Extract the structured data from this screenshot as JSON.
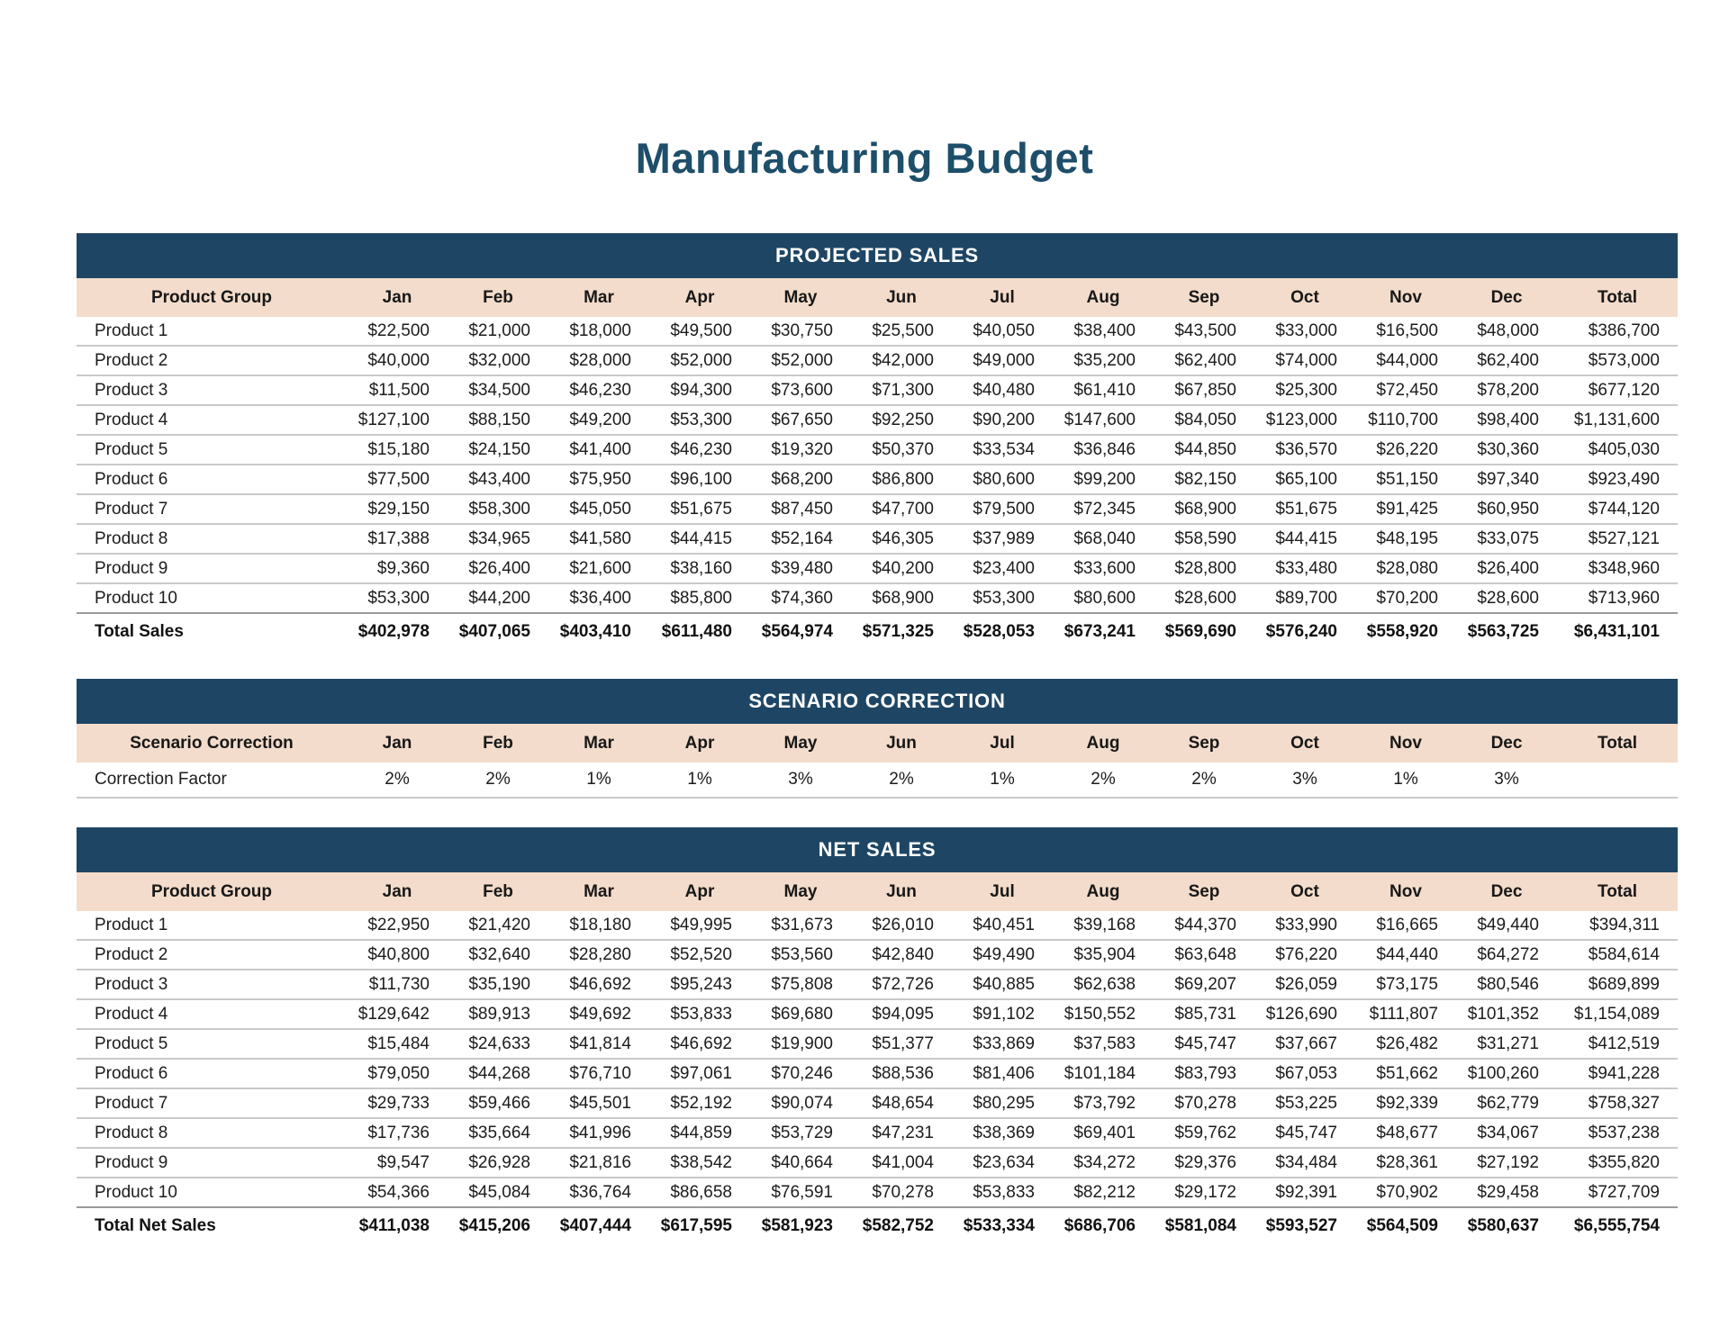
{
  "title": "Manufacturing Budget",
  "total_label": "Total",
  "months": [
    "Jan",
    "Feb",
    "Mar",
    "Apr",
    "May",
    "Jun",
    "Jul",
    "Aug",
    "Sep",
    "Oct",
    "Nov",
    "Dec"
  ],
  "colors": {
    "band_navy": "#1E4664",
    "header_peach": "#F3DCCB",
    "title_blue": "#1D4E6A"
  },
  "projected_sales": {
    "section_title": "PROJECTED SALES",
    "row_header": "Product Group",
    "rows": [
      {
        "label": "Product 1",
        "values": [
          "$22,500",
          "$21,000",
          "$18,000",
          "$49,500",
          "$30,750",
          "$25,500",
          "$40,050",
          "$38,400",
          "$43,500",
          "$33,000",
          "$16,500",
          "$48,000",
          "$386,700"
        ]
      },
      {
        "label": "Product 2",
        "values": [
          "$40,000",
          "$32,000",
          "$28,000",
          "$52,000",
          "$52,000",
          "$42,000",
          "$49,000",
          "$35,200",
          "$62,400",
          "$74,000",
          "$44,000",
          "$62,400",
          "$573,000"
        ]
      },
      {
        "label": "Product 3",
        "values": [
          "$11,500",
          "$34,500",
          "$46,230",
          "$94,300",
          "$73,600",
          "$71,300",
          "$40,480",
          "$61,410",
          "$67,850",
          "$25,300",
          "$72,450",
          "$78,200",
          "$677,120"
        ]
      },
      {
        "label": "Product 4",
        "values": [
          "$127,100",
          "$88,150",
          "$49,200",
          "$53,300",
          "$67,650",
          "$92,250",
          "$90,200",
          "$147,600",
          "$84,050",
          "$123,000",
          "$110,700",
          "$98,400",
          "$1,131,600"
        ]
      },
      {
        "label": "Product 5",
        "values": [
          "$15,180",
          "$24,150",
          "$41,400",
          "$46,230",
          "$19,320",
          "$50,370",
          "$33,534",
          "$36,846",
          "$44,850",
          "$36,570",
          "$26,220",
          "$30,360",
          "$405,030"
        ]
      },
      {
        "label": "Product 6",
        "values": [
          "$77,500",
          "$43,400",
          "$75,950",
          "$96,100",
          "$68,200",
          "$86,800",
          "$80,600",
          "$99,200",
          "$82,150",
          "$65,100",
          "$51,150",
          "$97,340",
          "$923,490"
        ]
      },
      {
        "label": "Product 7",
        "values": [
          "$29,150",
          "$58,300",
          "$45,050",
          "$51,675",
          "$87,450",
          "$47,700",
          "$79,500",
          "$72,345",
          "$68,900",
          "$51,675",
          "$91,425",
          "$60,950",
          "$744,120"
        ]
      },
      {
        "label": "Product 8",
        "values": [
          "$17,388",
          "$34,965",
          "$41,580",
          "$44,415",
          "$52,164",
          "$46,305",
          "$37,989",
          "$68,040",
          "$58,590",
          "$44,415",
          "$48,195",
          "$33,075",
          "$527,121"
        ]
      },
      {
        "label": "Product 9",
        "values": [
          "$9,360",
          "$26,400",
          "$21,600",
          "$38,160",
          "$39,480",
          "$40,200",
          "$23,400",
          "$33,600",
          "$28,800",
          "$33,480",
          "$28,080",
          "$26,400",
          "$348,960"
        ]
      },
      {
        "label": "Product 10",
        "values": [
          "$53,300",
          "$44,200",
          "$36,400",
          "$85,800",
          "$74,360",
          "$68,900",
          "$53,300",
          "$80,600",
          "$28,600",
          "$89,700",
          "$70,200",
          "$28,600",
          "$713,960"
        ]
      }
    ],
    "total_row": {
      "label": "Total Sales",
      "values": [
        "$402,978",
        "$407,065",
        "$403,410",
        "$611,480",
        "$564,974",
        "$571,325",
        "$528,053",
        "$673,241",
        "$569,690",
        "$576,240",
        "$558,920",
        "$563,725",
        "$6,431,101"
      ]
    }
  },
  "scenario_correction": {
    "section_title": "SCENARIO CORRECTION",
    "row_header": "Scenario Correction",
    "rows": [
      {
        "label": "Correction Factor",
        "values": [
          "2%",
          "2%",
          "1%",
          "1%",
          "3%",
          "2%",
          "1%",
          "2%",
          "2%",
          "3%",
          "1%",
          "3%",
          ""
        ]
      }
    ]
  },
  "net_sales": {
    "section_title": "NET SALES",
    "row_header": "Product Group",
    "rows": [
      {
        "label": "Product 1",
        "values": [
          "$22,950",
          "$21,420",
          "$18,180",
          "$49,995",
          "$31,673",
          "$26,010",
          "$40,451",
          "$39,168",
          "$44,370",
          "$33,990",
          "$16,665",
          "$49,440",
          "$394,311"
        ]
      },
      {
        "label": "Product 2",
        "values": [
          "$40,800",
          "$32,640",
          "$28,280",
          "$52,520",
          "$53,560",
          "$42,840",
          "$49,490",
          "$35,904",
          "$63,648",
          "$76,220",
          "$44,440",
          "$64,272",
          "$584,614"
        ]
      },
      {
        "label": "Product 3",
        "values": [
          "$11,730",
          "$35,190",
          "$46,692",
          "$95,243",
          "$75,808",
          "$72,726",
          "$40,885",
          "$62,638",
          "$69,207",
          "$26,059",
          "$73,175",
          "$80,546",
          "$689,899"
        ]
      },
      {
        "label": "Product 4",
        "values": [
          "$129,642",
          "$89,913",
          "$49,692",
          "$53,833",
          "$69,680",
          "$94,095",
          "$91,102",
          "$150,552",
          "$85,731",
          "$126,690",
          "$111,807",
          "$101,352",
          "$1,154,089"
        ]
      },
      {
        "label": "Product 5",
        "values": [
          "$15,484",
          "$24,633",
          "$41,814",
          "$46,692",
          "$19,900",
          "$51,377",
          "$33,869",
          "$37,583",
          "$45,747",
          "$37,667",
          "$26,482",
          "$31,271",
          "$412,519"
        ]
      },
      {
        "label": "Product 6",
        "values": [
          "$79,050",
          "$44,268",
          "$76,710",
          "$97,061",
          "$70,246",
          "$88,536",
          "$81,406",
          "$101,184",
          "$83,793",
          "$67,053",
          "$51,662",
          "$100,260",
          "$941,228"
        ]
      },
      {
        "label": "Product 7",
        "values": [
          "$29,733",
          "$59,466",
          "$45,501",
          "$52,192",
          "$90,074",
          "$48,654",
          "$80,295",
          "$73,792",
          "$70,278",
          "$53,225",
          "$92,339",
          "$62,779",
          "$758,327"
        ]
      },
      {
        "label": "Product 8",
        "values": [
          "$17,736",
          "$35,664",
          "$41,996",
          "$44,859",
          "$53,729",
          "$47,231",
          "$38,369",
          "$69,401",
          "$59,762",
          "$45,747",
          "$48,677",
          "$34,067",
          "$537,238"
        ]
      },
      {
        "label": "Product 9",
        "values": [
          "$9,547",
          "$26,928",
          "$21,816",
          "$38,542",
          "$40,664",
          "$41,004",
          "$23,634",
          "$34,272",
          "$29,376",
          "$34,484",
          "$28,361",
          "$27,192",
          "$355,820"
        ]
      },
      {
        "label": "Product 10",
        "values": [
          "$54,366",
          "$45,084",
          "$36,764",
          "$86,658",
          "$76,591",
          "$70,278",
          "$53,833",
          "$82,212",
          "$29,172",
          "$92,391",
          "$70,902",
          "$29,458",
          "$727,709"
        ]
      }
    ],
    "total_row": {
      "label": "Total Net Sales",
      "values": [
        "$411,038",
        "$415,206",
        "$407,444",
        "$617,595",
        "$581,923",
        "$582,752",
        "$533,334",
        "$686,706",
        "$581,084",
        "$593,527",
        "$564,509",
        "$580,637",
        "$6,555,754"
      ]
    }
  }
}
